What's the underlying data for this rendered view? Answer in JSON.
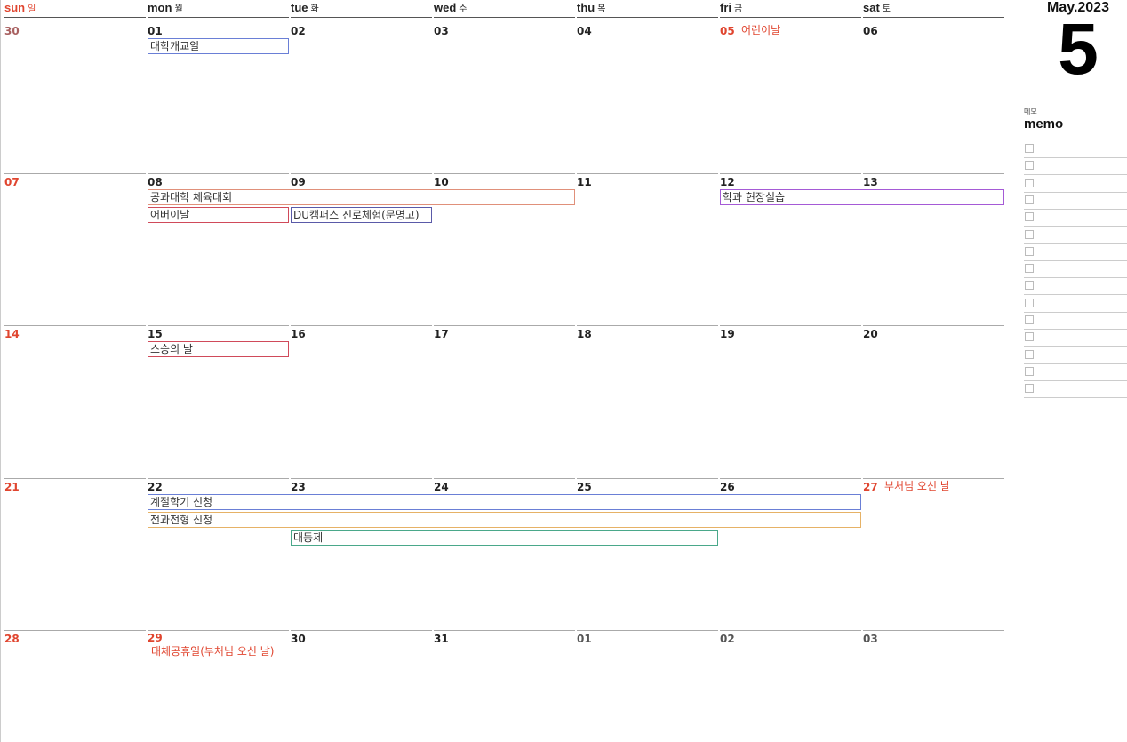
{
  "header": {
    "month_year": "May.2023",
    "month_number": "5",
    "weekdays": [
      {
        "en": "sun",
        "ko": "일"
      },
      {
        "en": "mon",
        "ko": "월"
      },
      {
        "en": "tue",
        "ko": "화"
      },
      {
        "en": "wed",
        "ko": "수"
      },
      {
        "en": "thu",
        "ko": "목"
      },
      {
        "en": "fri",
        "ko": "금"
      },
      {
        "en": "sat",
        "ko": "토"
      }
    ]
  },
  "colors": {
    "sunday": "#e0452f",
    "prev_month": "#a86060",
    "next_month": "#555555",
    "normal": "#222222"
  },
  "weeks": [
    {
      "days": [
        {
          "num": "30",
          "type": "prev"
        },
        {
          "num": "01"
        },
        {
          "num": "02"
        },
        {
          "num": "03"
        },
        {
          "num": "04"
        },
        {
          "num": "05",
          "type": "holiday",
          "holiday": "어린이날"
        },
        {
          "num": "06"
        }
      ],
      "events": [
        {
          "title": "대학개교일",
          "start": 1,
          "span": 1,
          "row": 0,
          "color": "#6a7fd6"
        }
      ]
    },
    {
      "days": [
        {
          "num": "07",
          "type": "sunday"
        },
        {
          "num": "08"
        },
        {
          "num": "09"
        },
        {
          "num": "10"
        },
        {
          "num": "11"
        },
        {
          "num": "12"
        },
        {
          "num": "13"
        }
      ],
      "events": [
        {
          "title": "공과대학 체육대회",
          "start": 1,
          "span": 3,
          "row": 0,
          "color": "#e0907a"
        },
        {
          "title": "학과 현장실습",
          "start": 5,
          "span": 2,
          "row": 0,
          "color": "#a55ad6"
        },
        {
          "title": "어버이날",
          "start": 1,
          "span": 1,
          "row": 1,
          "color": "#d04a5a"
        },
        {
          "title": "DU캠퍼스 진로체험(문명고)",
          "start": 2,
          "span": 1,
          "row": 1,
          "color": "#5a5aa8"
        }
      ]
    },
    {
      "days": [
        {
          "num": "14",
          "type": "sunday"
        },
        {
          "num": "15"
        },
        {
          "num": "16"
        },
        {
          "num": "17"
        },
        {
          "num": "18"
        },
        {
          "num": "19"
        },
        {
          "num": "20"
        }
      ],
      "events": [
        {
          "title": "스승의 날",
          "start": 1,
          "span": 1,
          "row": 0,
          "color": "#d04a5a"
        }
      ]
    },
    {
      "days": [
        {
          "num": "21",
          "type": "sunday"
        },
        {
          "num": "22"
        },
        {
          "num": "23"
        },
        {
          "num": "24"
        },
        {
          "num": "25"
        },
        {
          "num": "26"
        },
        {
          "num": "27",
          "type": "holiday",
          "holiday": "부처님 오신 날"
        }
      ],
      "events": [
        {
          "title": "계절학기 신청",
          "start": 1,
          "span": 5,
          "row": 0,
          "color": "#6a7fd6"
        },
        {
          "title": "전과전형 신청",
          "start": 1,
          "span": 5,
          "row": 1,
          "color": "#e6b266"
        },
        {
          "title": "대동제",
          "start": 2,
          "span": 3,
          "row": 2,
          "color": "#4aa88a"
        }
      ]
    },
    {
      "days": [
        {
          "num": "28",
          "type": "sunday"
        },
        {
          "num": "29",
          "type": "holiday",
          "holiday": "대체공휴일(부처님 오신 날)",
          "holiday_below": true
        },
        {
          "num": "30"
        },
        {
          "num": "31"
        },
        {
          "num": "01",
          "type": "next"
        },
        {
          "num": "02",
          "type": "next"
        },
        {
          "num": "03",
          "type": "next"
        }
      ],
      "events": []
    }
  ],
  "memo": {
    "label_ko": "메모",
    "label_en": "memo",
    "rows": 15
  }
}
